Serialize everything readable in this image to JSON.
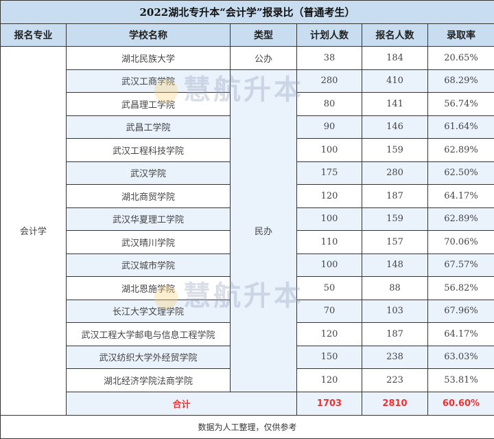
{
  "title": "2022湖北专升本“会计学”报录比（普通考生）",
  "headers": [
    "报名专业",
    "学校名称",
    "类型",
    "计划人数",
    "报名人数",
    "录取率"
  ],
  "major": "会计学",
  "types": {
    "public": "公办",
    "private": "民办"
  },
  "rows": [
    {
      "school": "湖北民族大学",
      "plan": "38",
      "applicants": "184",
      "rate": "20.65%"
    },
    {
      "school": "武汉工商学院",
      "plan": "280",
      "applicants": "410",
      "rate": "68.29%"
    },
    {
      "school": "武昌理工学院",
      "plan": "80",
      "applicants": "141",
      "rate": "56.74%"
    },
    {
      "school": "武昌工学院",
      "plan": "90",
      "applicants": "146",
      "rate": "61.64%"
    },
    {
      "school": "武汉工程科技学院",
      "plan": "100",
      "applicants": "159",
      "rate": "62.89%"
    },
    {
      "school": "武汉学院",
      "plan": "175",
      "applicants": "280",
      "rate": "62.50%"
    },
    {
      "school": "湖北商贸学院",
      "plan": "120",
      "applicants": "187",
      "rate": "64.17%"
    },
    {
      "school": "武汉华夏理工学院",
      "plan": "100",
      "applicants": "159",
      "rate": "62.89%"
    },
    {
      "school": "武汉晴川学院",
      "plan": "110",
      "applicants": "157",
      "rate": "70.06%"
    },
    {
      "school": "武汉城市学院",
      "plan": "100",
      "applicants": "148",
      "rate": "67.57%"
    },
    {
      "school": "湖北恩施学院",
      "plan": "50",
      "applicants": "88",
      "rate": "56.82%"
    },
    {
      "school": "长江大学文理学院",
      "plan": "70",
      "applicants": "103",
      "rate": "67.96%"
    },
    {
      "school": "武汉工程大学邮电与信息工程学院",
      "plan": "120",
      "applicants": "187",
      "rate": "64.17%"
    },
    {
      "school": "武汉纺织大学外经贸学院",
      "plan": "150",
      "applicants": "238",
      "rate": "63.03%"
    },
    {
      "school": "湖北经济学院法商学院",
      "plan": "120",
      "applicants": "223",
      "rate": "53.81%"
    }
  ],
  "total": {
    "label": "合计",
    "plan": "1703",
    "applicants": "2810",
    "rate": "60.60%"
  },
  "footer": "数据为人工整理，仅供参考",
  "watermark": "慧航升本"
}
